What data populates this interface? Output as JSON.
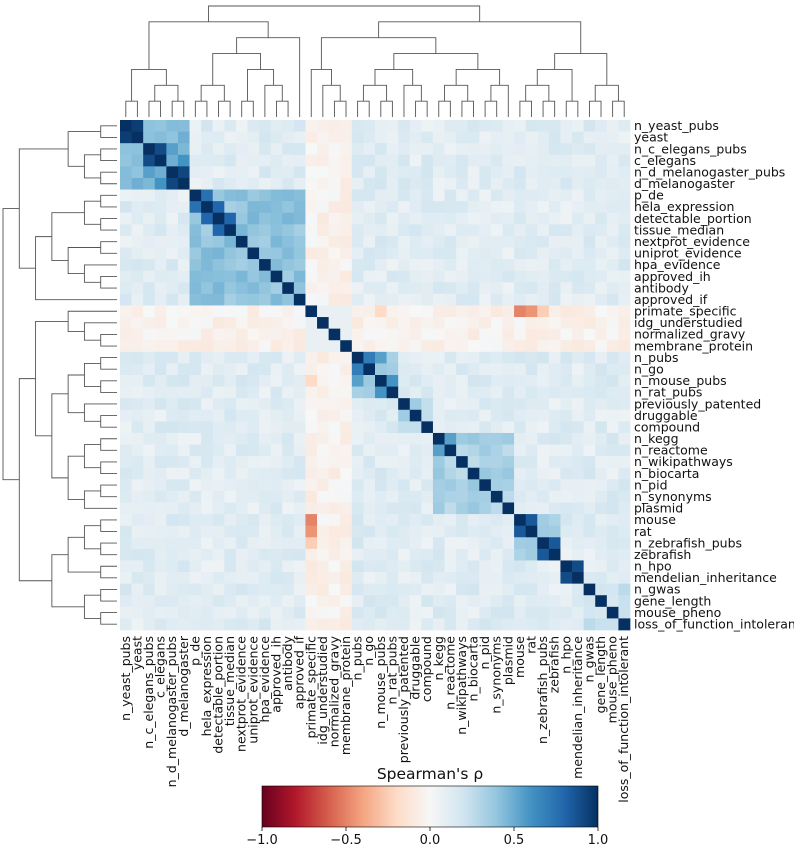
{
  "chart_data": {
    "type": "heatmap",
    "subtype": "clustered correlation heatmap",
    "labels": [
      "n_yeast_pubs",
      "yeast",
      "n_c_elegans_pubs",
      "c_elegans",
      "n_d_melanogaster_pubs",
      "d_melanogaster",
      "p_de",
      "hela_expression",
      "detectable_portion",
      "tissue_median",
      "nextprot_evidence",
      "uniprot_evidence",
      "hpa_evidence",
      "approved_ih",
      "antibody",
      "approved_if",
      "primate_specific",
      "idg_understudied",
      "normalized_gravy",
      "membrane_protein",
      "n_pubs",
      "n_go",
      "n_mouse_pubs",
      "n_rat_pubs",
      "previously_patented",
      "druggable",
      "compound",
      "n_kegg",
      "n_reactome",
      "n_wikipathways",
      "n_biocarta",
      "n_pid",
      "n_synonyms",
      "plasmid",
      "mouse",
      "rat",
      "n_zebrafish_pubs",
      "zebrafish",
      "n_hpo",
      "mendelian_inheritance",
      "n_gwas",
      "gene_length",
      "mouse_pheno",
      "loss_of_function_intolerant"
    ],
    "groups": [
      0,
      0,
      0,
      0,
      0,
      0,
      1,
      1,
      1,
      1,
      1,
      1,
      1,
      1,
      1,
      1,
      2,
      2,
      2,
      2,
      3,
      3,
      3,
      3,
      4,
      4,
      4,
      5,
      5,
      5,
      5,
      5,
      5,
      5,
      6,
      6,
      6,
      6,
      7,
      7,
      8,
      8,
      8,
      8
    ],
    "strong_pairs": [
      [
        "n_yeast_pubs",
        "yeast",
        0.95
      ],
      [
        "n_c_elegans_pubs",
        "c_elegans",
        0.9
      ],
      [
        "n_d_melanogaster_pubs",
        "d_melanogaster",
        0.92
      ],
      [
        "n_c_elegans_pubs",
        "n_d_melanogaster_pubs",
        0.55
      ],
      [
        "c_elegans",
        "d_melanogaster",
        0.6
      ],
      [
        "p_de",
        "hela_expression",
        0.75
      ],
      [
        "hela_expression",
        "detectable_portion",
        0.8
      ],
      [
        "detectable_portion",
        "tissue_median",
        0.8
      ],
      [
        "n_pubs",
        "n_go",
        0.7
      ],
      [
        "n_pubs",
        "n_mouse_pubs",
        0.55
      ],
      [
        "n_mouse_pubs",
        "n_rat_pubs",
        0.6
      ],
      [
        "n_kegg",
        "n_reactome",
        0.55
      ],
      [
        "mouse",
        "rat",
        0.85
      ],
      [
        "n_zebrafish_pubs",
        "zebrafish",
        0.85
      ],
      [
        "n_hpo",
        "mendelian_inheritance",
        0.9
      ]
    ],
    "negative_pairs": [
      [
        "primate_specific",
        "mouse",
        -0.5
      ],
      [
        "primate_specific",
        "rat",
        -0.45
      ],
      [
        "primate_specific",
        "n_zebrafish_pubs",
        -0.25
      ],
      [
        "primate_specific",
        "n_mouse_pubs",
        -0.2
      ]
    ],
    "diagonal_value": 1.0,
    "colormap": "RdBu",
    "vmin": -1.0,
    "vmax": 1.0,
    "colorbar": {
      "title": "Spearman's ρ",
      "ticks": [
        "−1.0",
        "−0.5",
        "0.0",
        "0.5",
        "1.0"
      ],
      "tick_values": [
        -1.0,
        -0.5,
        0.0,
        0.5,
        1.0
      ],
      "placement": "bottom"
    },
    "dendrograms": [
      "top",
      "left"
    ]
  }
}
